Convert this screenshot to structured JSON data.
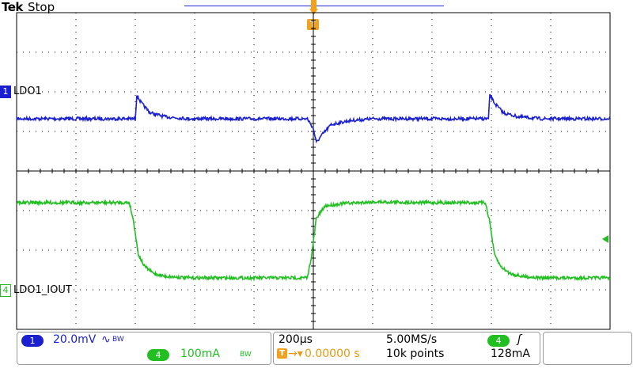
{
  "header": {
    "brand": "Tek",
    "acq_state": "Stop",
    "trigger_label": "T"
  },
  "colors": {
    "ch1": "#1a1fd0",
    "ch4": "#22bf22",
    "trigger": "#f0a21e",
    "grid": "#000000"
  },
  "channels": {
    "ch1": {
      "number": "1",
      "label": "LDO1"
    },
    "ch4": {
      "number": "4",
      "label": "LDO1_IOUT"
    }
  },
  "readout": {
    "ch1_scale": "20.0mV",
    "ch1_coupling": "∿",
    "ch1_bw": "BW",
    "ch4_num": "4",
    "ch4_scale": "100mA",
    "ch4_bw": "BW",
    "timebase": "200µs",
    "sample_rate": "5.00MS/s",
    "trigger_pos_prefix": "T",
    "trigger_pos": "0.00000 s",
    "record_length": "10k points",
    "trigger_source": "4",
    "trigger_slope_icon": "rising-edge-icon",
    "trigger_level": "128mA"
  },
  "chart_data": {
    "type": "line",
    "x_unit": "µs",
    "x_range": [
      -1000,
      1000
    ],
    "x_per_division": 200,
    "divisions_x": 10,
    "divisions_y": 8,
    "series": [
      {
        "name": "LDO1",
        "y_unit": "mV",
        "volts_per_division": 20,
        "points": [
          [
            -1000,
            0
          ],
          [
            -610,
            0
          ],
          [
            -600,
            0
          ],
          [
            -595,
            12
          ],
          [
            -580,
            8
          ],
          [
            -550,
            3
          ],
          [
            -500,
            1
          ],
          [
            -420,
            0
          ],
          [
            -20,
            0
          ],
          [
            0,
            -5
          ],
          [
            10,
            -12
          ],
          [
            30,
            -8
          ],
          [
            60,
            -3
          ],
          [
            120,
            -1
          ],
          [
            200,
            0
          ],
          [
            580,
            0
          ],
          [
            590,
            0
          ],
          [
            595,
            12
          ],
          [
            610,
            8
          ],
          [
            640,
            3
          ],
          [
            690,
            1
          ],
          [
            770,
            0
          ],
          [
            1000,
            0
          ]
        ]
      },
      {
        "name": "LDO1_IOUT",
        "y_unit": "mA",
        "amps_per_division": 100,
        "points": [
          [
            -1000,
            190
          ],
          [
            -620,
            190
          ],
          [
            -605,
            140
          ],
          [
            -590,
            60
          ],
          [
            -570,
            30
          ],
          [
            -540,
            12
          ],
          [
            -500,
            4
          ],
          [
            -420,
            0
          ],
          [
            -20,
            0
          ],
          [
            -5,
            60
          ],
          [
            10,
            150
          ],
          [
            40,
            182
          ],
          [
            100,
            188
          ],
          [
            200,
            192
          ],
          [
            400,
            190
          ],
          [
            580,
            190
          ],
          [
            595,
            140
          ],
          [
            610,
            60
          ],
          [
            630,
            30
          ],
          [
            660,
            12
          ],
          [
            700,
            4
          ],
          [
            770,
            0
          ],
          [
            1000,
            0
          ]
        ]
      }
    ]
  }
}
